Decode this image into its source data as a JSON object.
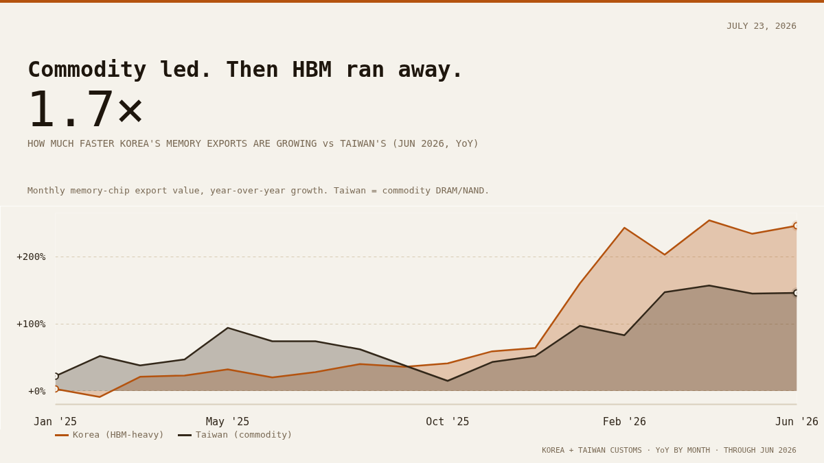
{
  "chart_data": {
    "type": "area",
    "title": "Commodity led. Then HBM ran away.",
    "subtitle": "Monthly memory-chip export value, year-over-year growth. Taiwan = commodity DRAM/NAND.",
    "annotations": [
      "JULY 23, 2026",
      "1.7×",
      "HOW MUCH FASTER KOREA'S MEMORY EXPORTS ARE GROWING vs TAIWAN'S (JUN 2026, YoY)",
      "KOREA + TAIWAN CUSTOMS · YoY BY MONTH · THROUGH JUN 2026"
    ],
    "x": [
      "2025-01",
      "2025-02",
      "2025-03",
      "2025-04",
      "2025-05",
      "2025-06",
      "2025-07",
      "2025-08",
      "2025-09",
      "2025-10",
      "2025-11",
      "2025-12",
      "2026-01",
      "2026-02",
      "2026-03",
      "2026-04",
      "2026-05",
      "2026-06"
    ],
    "xlim": [
      "2025-01",
      "2026-06"
    ],
    "xticks": [
      {
        "value": "2025-01",
        "label": "Jan '25"
      },
      {
        "value": "2025-05",
        "label": "May '25"
      },
      {
        "value": "2025-10",
        "label": "Oct '25"
      },
      {
        "value": "2026-02",
        "label": "Feb '26"
      },
      {
        "value": "2026-06",
        "label": "Jun '26"
      }
    ],
    "ylim": [
      -20,
      265
    ],
    "yticks": [
      {
        "value": 0,
        "label": "+0%"
      },
      {
        "value": 100,
        "label": "+100%"
      },
      {
        "value": 200,
        "label": "+200%"
      }
    ],
    "grid": "y",
    "legend": "bottom left",
    "series": [
      {
        "name": "Korea (HBM-heavy)",
        "color": "#b4530f",
        "values": [
          3,
          -9,
          21,
          23,
          32,
          20,
          28,
          40,
          36,
          41,
          59,
          64,
          160,
          243,
          203,
          254,
          234,
          246
        ]
      },
      {
        "name": "Taiwan (commodity)",
        "color": "#33281a",
        "values": [
          22,
          52,
          38,
          47,
          94,
          74,
          74,
          62,
          38,
          15,
          43,
          52,
          97,
          83,
          147,
          157,
          145,
          146
        ]
      }
    ]
  }
}
